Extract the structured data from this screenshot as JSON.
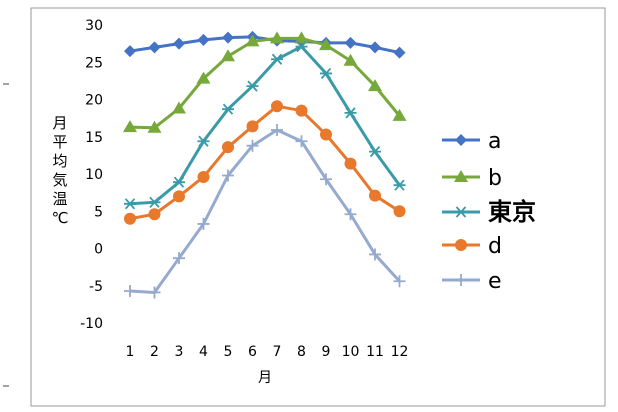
{
  "chart_data": {
    "type": "line",
    "x": [
      1,
      2,
      3,
      4,
      5,
      6,
      7,
      8,
      9,
      10,
      11,
      12
    ],
    "xlabel": "月",
    "ylabel": "月平均気温℃",
    "ylim": [
      -10,
      30
    ],
    "yticks": [
      -10,
      -5,
      0,
      5,
      10,
      15,
      20,
      25,
      30
    ],
    "grid": false,
    "legend_position": "right",
    "series": [
      {
        "name": "a",
        "color": "#4472C4",
        "marker": "diamond",
        "values": [
          26.5,
          27,
          27.5,
          28,
          28.3,
          28.4,
          27.9,
          27.8,
          27.6,
          27.6,
          27,
          26.3
        ]
      },
      {
        "name": "b",
        "color": "#77A83A",
        "marker": "triangle",
        "values": [
          16.3,
          16.2,
          18.8,
          22.8,
          25.8,
          27.8,
          28.2,
          28.2,
          27.3,
          25.2,
          21.8,
          17.8
        ]
      },
      {
        "name": "東京",
        "color": "#3A9AA8",
        "marker": "star",
        "values": [
          6,
          6.2,
          8.9,
          14.4,
          18.7,
          21.8,
          25.4,
          27.1,
          23.5,
          18.2,
          13,
          8.5
        ]
      },
      {
        "name": "d",
        "color": "#E8782B",
        "marker": "circle",
        "values": [
          4,
          4.6,
          7,
          9.6,
          13.6,
          16.4,
          19.1,
          18.5,
          15.3,
          11.4,
          7.1,
          5
        ]
      },
      {
        "name": "e",
        "color": "#95AACE",
        "marker": "plus",
        "values": [
          -5.7,
          -5.9,
          -1.3,
          3.3,
          9.8,
          13.8,
          15.9,
          14.4,
          9.3,
          4.6,
          -0.8,
          -4.4
        ]
      }
    ]
  }
}
